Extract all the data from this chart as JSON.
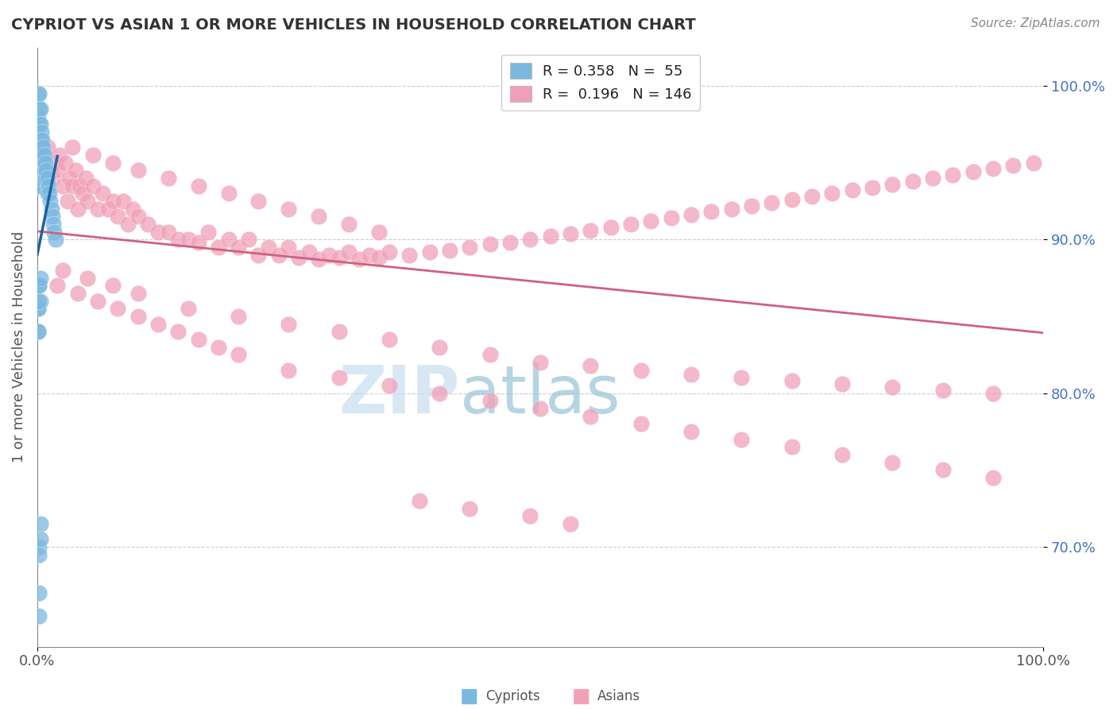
{
  "title": "CYPRIOT VS ASIAN 1 OR MORE VEHICLES IN HOUSEHOLD CORRELATION CHART",
  "source_text": "Source: ZipAtlas.com",
  "ylabel": "1 or more Vehicles in Household",
  "xlim": [
    0.0,
    1.0
  ],
  "ylim": [
    0.635,
    1.025
  ],
  "ytick_positions": [
    0.7,
    0.8,
    0.9,
    1.0
  ],
  "ytick_labels": [
    "70.0%",
    "80.0%",
    "90.0%",
    "100.0%"
  ],
  "cypriot_color": "#7ab8e0",
  "asian_color": "#f0a0b8",
  "cypriot_line_color": "#2060a0",
  "asian_line_color": "#d06080",
  "background_color": "#ffffff",
  "grid_color": "#cccccc",
  "watermark_zip": "ZIP",
  "watermark_atlas": "atlas",
  "watermark_zip_color": "#c8ddf0",
  "watermark_atlas_color": "#98c4d8",
  "cypriot_x": [
    0.001,
    0.001,
    0.001,
    0.002,
    0.002,
    0.002,
    0.002,
    0.002,
    0.002,
    0.002,
    0.003,
    0.003,
    0.003,
    0.003,
    0.003,
    0.003,
    0.004,
    0.004,
    0.004,
    0.004,
    0.005,
    0.005,
    0.005,
    0.006,
    0.006,
    0.007,
    0.007,
    0.008,
    0.008,
    0.009,
    0.01,
    0.01,
    0.011,
    0.012,
    0.013,
    0.014,
    0.015,
    0.016,
    0.017,
    0.018,
    0.002,
    0.002,
    0.003,
    0.003,
    0.002,
    0.002,
    0.001,
    0.001,
    0.002,
    0.003,
    0.001,
    0.001,
    0.002,
    0.002,
    0.003
  ],
  "cypriot_y": [
    0.995,
    0.98,
    0.965,
    0.995,
    0.985,
    0.975,
    0.965,
    0.955,
    0.945,
    0.935,
    0.985,
    0.975,
    0.965,
    0.955,
    0.945,
    0.935,
    0.97,
    0.96,
    0.95,
    0.94,
    0.965,
    0.955,
    0.945,
    0.96,
    0.95,
    0.955,
    0.945,
    0.95,
    0.94,
    0.945,
    0.94,
    0.93,
    0.935,
    0.93,
    0.925,
    0.92,
    0.915,
    0.91,
    0.905,
    0.9,
    0.7,
    0.695,
    0.715,
    0.705,
    0.67,
    0.655,
    0.855,
    0.84,
    0.87,
    0.86,
    0.855,
    0.84,
    0.87,
    0.86,
    0.875
  ],
  "asian_x": [
    0.005,
    0.01,
    0.015,
    0.018,
    0.02,
    0.022,
    0.025,
    0.028,
    0.03,
    0.032,
    0.035,
    0.038,
    0.04,
    0.042,
    0.045,
    0.048,
    0.05,
    0.055,
    0.06,
    0.065,
    0.07,
    0.075,
    0.08,
    0.085,
    0.09,
    0.095,
    0.1,
    0.11,
    0.12,
    0.13,
    0.14,
    0.15,
    0.16,
    0.17,
    0.18,
    0.19,
    0.2,
    0.21,
    0.22,
    0.23,
    0.24,
    0.25,
    0.26,
    0.27,
    0.28,
    0.29,
    0.3,
    0.31,
    0.32,
    0.33,
    0.34,
    0.35,
    0.37,
    0.39,
    0.41,
    0.43,
    0.45,
    0.47,
    0.49,
    0.51,
    0.53,
    0.55,
    0.57,
    0.59,
    0.61,
    0.63,
    0.65,
    0.67,
    0.69,
    0.71,
    0.73,
    0.75,
    0.77,
    0.79,
    0.81,
    0.83,
    0.85,
    0.87,
    0.89,
    0.91,
    0.93,
    0.95,
    0.97,
    0.99,
    0.035,
    0.055,
    0.075,
    0.1,
    0.13,
    0.16,
    0.19,
    0.22,
    0.25,
    0.28,
    0.31,
    0.34,
    0.02,
    0.04,
    0.06,
    0.08,
    0.1,
    0.12,
    0.14,
    0.16,
    0.18,
    0.2,
    0.25,
    0.3,
    0.35,
    0.4,
    0.45,
    0.5,
    0.55,
    0.6,
    0.65,
    0.7,
    0.75,
    0.8,
    0.85,
    0.9,
    0.95,
    0.025,
    0.05,
    0.075,
    0.1,
    0.15,
    0.2,
    0.25,
    0.3,
    0.35,
    0.4,
    0.45,
    0.5,
    0.55,
    0.6,
    0.65,
    0.7,
    0.75,
    0.8,
    0.85,
    0.9,
    0.95,
    0.38,
    0.43,
    0.49,
    0.53
  ],
  "asian_y": [
    0.955,
    0.96,
    0.94,
    0.95,
    0.945,
    0.955,
    0.935,
    0.95,
    0.925,
    0.94,
    0.935,
    0.945,
    0.92,
    0.935,
    0.93,
    0.94,
    0.925,
    0.935,
    0.92,
    0.93,
    0.92,
    0.925,
    0.915,
    0.925,
    0.91,
    0.92,
    0.915,
    0.91,
    0.905,
    0.905,
    0.9,
    0.9,
    0.898,
    0.905,
    0.895,
    0.9,
    0.895,
    0.9,
    0.89,
    0.895,
    0.89,
    0.895,
    0.888,
    0.892,
    0.887,
    0.89,
    0.888,
    0.892,
    0.887,
    0.89,
    0.888,
    0.892,
    0.89,
    0.892,
    0.893,
    0.895,
    0.897,
    0.898,
    0.9,
    0.902,
    0.904,
    0.906,
    0.908,
    0.91,
    0.912,
    0.914,
    0.916,
    0.918,
    0.92,
    0.922,
    0.924,
    0.926,
    0.928,
    0.93,
    0.932,
    0.934,
    0.936,
    0.938,
    0.94,
    0.942,
    0.944,
    0.946,
    0.948,
    0.95,
    0.96,
    0.955,
    0.95,
    0.945,
    0.94,
    0.935,
    0.93,
    0.925,
    0.92,
    0.915,
    0.91,
    0.905,
    0.87,
    0.865,
    0.86,
    0.855,
    0.85,
    0.845,
    0.84,
    0.835,
    0.83,
    0.825,
    0.815,
    0.81,
    0.805,
    0.8,
    0.795,
    0.79,
    0.785,
    0.78,
    0.775,
    0.77,
    0.765,
    0.76,
    0.755,
    0.75,
    0.745,
    0.88,
    0.875,
    0.87,
    0.865,
    0.855,
    0.85,
    0.845,
    0.84,
    0.835,
    0.83,
    0.825,
    0.82,
    0.818,
    0.815,
    0.812,
    0.81,
    0.808,
    0.806,
    0.804,
    0.802,
    0.8,
    0.73,
    0.725,
    0.72,
    0.715
  ]
}
